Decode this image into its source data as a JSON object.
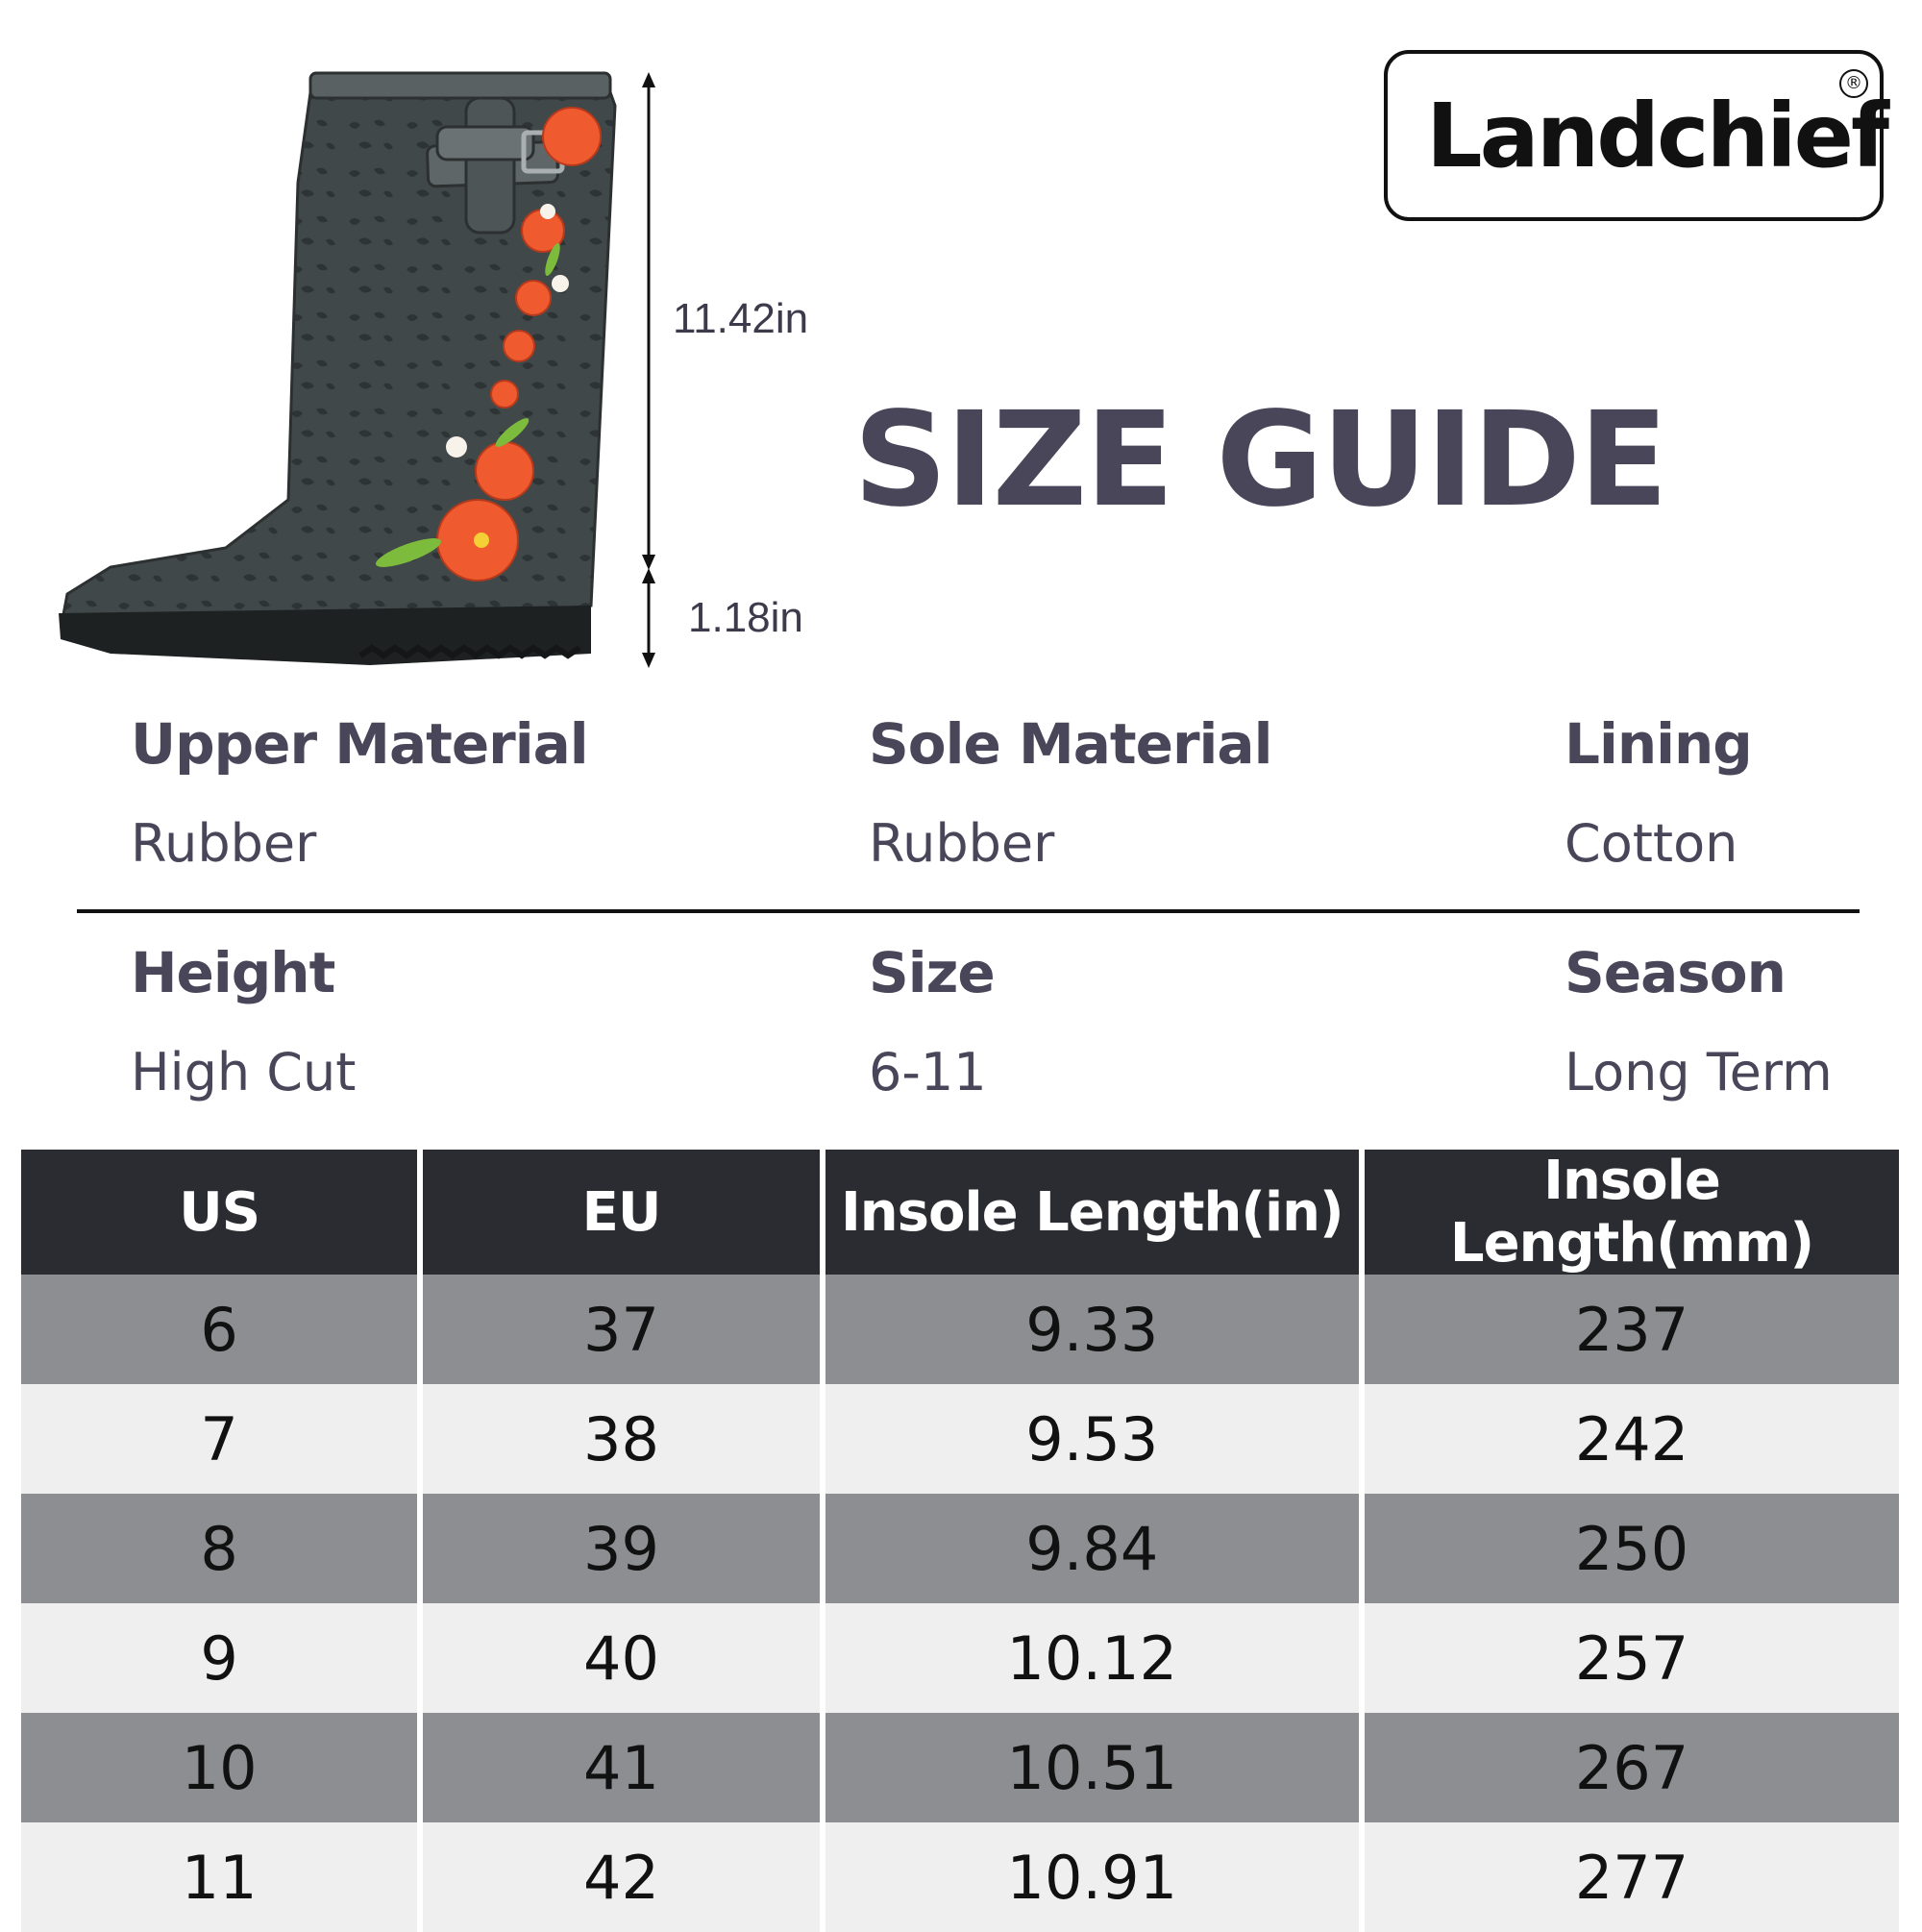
{
  "brand": {
    "logo_text": "Landchief",
    "registered_mark": "®"
  },
  "title": "SIZE GUIDE",
  "dimensions": {
    "shaft_height": "11.42in",
    "heel_height": "1.18in"
  },
  "specs": [
    {
      "heading": "Upper Material",
      "value": "Rubber"
    },
    {
      "heading": "Sole Material",
      "value": "Rubber"
    },
    {
      "heading": "Lining",
      "value": "Cotton"
    },
    {
      "heading": "Height",
      "value": "High Cut"
    },
    {
      "heading": "Size",
      "value": "6-11"
    },
    {
      "heading": "Season",
      "value": "Long Term"
    }
  ],
  "colors": {
    "text": "#4a4659",
    "header_bg": "#2b2c31",
    "row_dark": "#8d8e91",
    "row_light": "#efefef",
    "boot": "#3b4142",
    "flowers": "#ef5a2f"
  },
  "table": {
    "headers": [
      "US",
      "EU",
      "Insole Length(in)",
      "Insole Length(mm)"
    ],
    "rows": [
      [
        "6",
        "37",
        "9.33",
        "237"
      ],
      [
        "7",
        "38",
        "9.53",
        "242"
      ],
      [
        "8",
        "39",
        "9.84",
        "250"
      ],
      [
        "9",
        "40",
        "10.12",
        "257"
      ],
      [
        "10",
        "41",
        "10.51",
        "267"
      ],
      [
        "11",
        "42",
        "10.91",
        "277"
      ]
    ]
  }
}
